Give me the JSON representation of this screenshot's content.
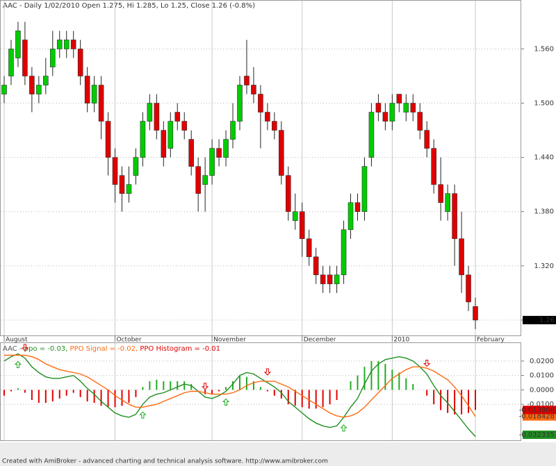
{
  "chart_data": [
    {
      "type": "candlestick",
      "title": "AAC - Daily 1/02/2010 Open 1.275, Hi 1.285, Lo 1.25, Close 1.26 (-0.8%)",
      "categories": [
        "August",
        null,
        null,
        null,
        null,
        null,
        null,
        null,
        null,
        null,
        null,
        null,
        null,
        null,
        null,
        null,
        "October",
        null,
        null,
        null,
        null,
        null,
        null,
        null,
        null,
        null,
        null,
        null,
        null,
        null,
        "November",
        null,
        null,
        null,
        null,
        null,
        null,
        null,
        null,
        null,
        null,
        null,
        null,
        "December",
        null,
        null,
        null,
        null,
        null,
        null,
        null,
        null,
        null,
        null,
        null,
        null,
        "2010",
        null,
        null,
        null,
        null,
        null,
        null,
        null,
        null,
        null,
        null,
        null,
        "February"
      ],
      "open": [
        1.51,
        1.53,
        1.55,
        1.57,
        1.53,
        1.51,
        1.52,
        1.54,
        1.56,
        1.56,
        1.57,
        1.56,
        1.53,
        1.5,
        1.52,
        1.48,
        1.44,
        1.42,
        1.4,
        1.42,
        1.44,
        1.48,
        1.5,
        1.47,
        1.45,
        1.49,
        1.48,
        1.46,
        1.43,
        1.41,
        1.42,
        1.45,
        1.44,
        1.46,
        1.48,
        1.53,
        1.52,
        1.51,
        1.49,
        1.48,
        1.47,
        1.42,
        1.37,
        1.38,
        1.35,
        1.33,
        1.31,
        1.31,
        1.3,
        1.31,
        1.36,
        1.39,
        1.38,
        1.44,
        1.5,
        1.49,
        1.48,
        1.51,
        1.49,
        1.5,
        1.49,
        1.47,
        1.45,
        1.41,
        1.38,
        1.4,
        1.35,
        1.31,
        1.275
      ],
      "high": [
        1.53,
        1.57,
        1.59,
        1.59,
        1.54,
        1.53,
        1.55,
        1.58,
        1.58,
        1.58,
        1.58,
        1.57,
        1.54,
        1.53,
        1.53,
        1.49,
        1.45,
        1.43,
        1.43,
        1.45,
        1.49,
        1.51,
        1.51,
        1.48,
        1.49,
        1.5,
        1.49,
        1.47,
        1.44,
        1.44,
        1.46,
        1.46,
        1.47,
        1.5,
        1.53,
        1.57,
        1.54,
        1.52,
        1.5,
        1.49,
        1.48,
        1.43,
        1.4,
        1.39,
        1.36,
        1.34,
        1.32,
        1.32,
        1.32,
        1.37,
        1.4,
        1.4,
        1.44,
        1.5,
        1.51,
        1.5,
        1.51,
        1.51,
        1.51,
        1.51,
        1.5,
        1.48,
        1.46,
        1.44,
        1.41,
        1.41,
        1.38,
        1.32,
        1.285
      ],
      "low": [
        1.5,
        1.52,
        1.54,
        1.52,
        1.49,
        1.5,
        1.51,
        1.53,
        1.55,
        1.55,
        1.55,
        1.52,
        1.49,
        1.49,
        1.46,
        1.42,
        1.39,
        1.38,
        1.39,
        1.41,
        1.43,
        1.47,
        1.46,
        1.43,
        1.44,
        1.47,
        1.46,
        1.42,
        1.38,
        1.38,
        1.41,
        1.43,
        1.43,
        1.45,
        1.47,
        1.51,
        1.5,
        1.45,
        1.47,
        1.46,
        1.41,
        1.37,
        1.36,
        1.33,
        1.32,
        1.3,
        1.29,
        1.29,
        1.29,
        1.3,
        1.35,
        1.37,
        1.37,
        1.43,
        1.48,
        1.47,
        1.47,
        1.49,
        1.48,
        1.48,
        1.46,
        1.44,
        1.4,
        1.37,
        1.37,
        1.32,
        1.29,
        1.27,
        1.25
      ],
      "close": [
        1.52,
        1.56,
        1.58,
        1.53,
        1.51,
        1.52,
        1.53,
        1.56,
        1.57,
        1.57,
        1.56,
        1.53,
        1.5,
        1.52,
        1.48,
        1.44,
        1.41,
        1.4,
        1.41,
        1.44,
        1.48,
        1.5,
        1.47,
        1.44,
        1.48,
        1.48,
        1.47,
        1.43,
        1.4,
        1.42,
        1.45,
        1.44,
        1.46,
        1.48,
        1.52,
        1.52,
        1.51,
        1.49,
        1.48,
        1.47,
        1.42,
        1.38,
        1.38,
        1.35,
        1.33,
        1.31,
        1.3,
        1.3,
        1.31,
        1.36,
        1.39,
        1.38,
        1.43,
        1.49,
        1.49,
        1.48,
        1.5,
        1.5,
        1.5,
        1.49,
        1.47,
        1.45,
        1.41,
        1.39,
        1.4,
        1.35,
        1.31,
        1.28,
        1.26
      ],
      "up_color": "#00cc00",
      "down_color": "#e00000",
      "ylim": [
        1.243,
        1.608
      ],
      "yticks": [
        {
          "value": 1.26,
          "label": "1.260"
        },
        {
          "value": 1.32,
          "label": "1.320"
        },
        {
          "value": 1.38,
          "label": "1.380"
        },
        {
          "value": 1.44,
          "label": "1.440"
        },
        {
          "value": 1.5,
          "label": "1.500"
        },
        {
          "value": 1.56,
          "label": "1.560"
        }
      ],
      "grid": true
    },
    {
      "type": "indicator",
      "title": "AAC -",
      "series": [
        {
          "label": "ppo = -0.03,",
          "style": "line",
          "color": "#1f8f1f",
          "values": [
            0.02,
            0.023,
            0.025,
            0.022,
            0.016,
            0.012,
            0.009,
            0.008,
            0.008,
            0.009,
            0.01,
            0.006,
            0.001,
            -0.003,
            -0.008,
            -0.012,
            -0.016,
            -0.018,
            -0.019,
            -0.017,
            -0.01,
            -0.005,
            -0.003,
            -0.002,
            0.0,
            0.002,
            0.004,
            0.003,
            -0.001,
            -0.005,
            -0.006,
            -0.004,
            -0.001,
            0.004,
            0.01,
            0.012,
            0.011,
            0.008,
            0.005,
            0.002,
            -0.002,
            -0.008,
            -0.012,
            -0.016,
            -0.02,
            -0.023,
            -0.025,
            -0.026,
            -0.025,
            -0.019,
            -0.012,
            -0.006,
            0.004,
            0.013,
            0.018,
            0.021,
            0.022,
            0.023,
            0.022,
            0.02,
            0.016,
            0.011,
            0.003,
            -0.004,
            -0.009,
            -0.015,
            -0.021,
            -0.027,
            -0.032335
          ]
        },
        {
          "label": "PPO Signal = -0.02,",
          "style": "line",
          "color": "#ff6a10",
          "values": [
            0.024,
            0.024,
            0.024,
            0.024,
            0.023,
            0.021,
            0.018,
            0.016,
            0.014,
            0.013,
            0.012,
            0.011,
            0.009,
            0.006,
            0.003,
            0.0,
            -0.004,
            -0.007,
            -0.01,
            -0.012,
            -0.012,
            -0.011,
            -0.01,
            -0.008,
            -0.006,
            -0.004,
            -0.002,
            -0.001,
            -0.001,
            -0.002,
            -0.003,
            -0.003,
            -0.003,
            -0.002,
            0.0,
            0.003,
            0.005,
            0.006,
            0.006,
            0.006,
            0.004,
            0.002,
            -0.001,
            -0.004,
            -0.007,
            -0.01,
            -0.013,
            -0.016,
            -0.018,
            -0.019,
            -0.018,
            -0.016,
            -0.012,
            -0.007,
            -0.002,
            0.003,
            0.008,
            0.011,
            0.014,
            0.016,
            0.016,
            0.015,
            0.013,
            0.01,
            0.007,
            0.002,
            -0.004,
            -0.011,
            -0.018428
          ]
        },
        {
          "label": "PPO Histogram = -0.01",
          "style": "histogram",
          "color": "#e00000",
          "up_color": "#22aa22",
          "values": [
            -0.004,
            -0.001,
            0.001,
            -0.002,
            -0.007,
            -0.009,
            -0.009,
            -0.008,
            -0.006,
            -0.004,
            -0.002,
            -0.005,
            -0.008,
            -0.009,
            -0.011,
            -0.012,
            -0.012,
            -0.011,
            -0.009,
            -0.005,
            0.002,
            0.006,
            0.007,
            0.006,
            0.006,
            0.006,
            0.006,
            0.004,
            0.0,
            -0.003,
            -0.003,
            -0.001,
            0.002,
            0.006,
            0.01,
            0.009,
            0.006,
            0.002,
            -0.001,
            -0.004,
            -0.006,
            -0.01,
            -0.011,
            -0.012,
            -0.013,
            -0.013,
            -0.012,
            -0.01,
            -0.007,
            0.0,
            0.006,
            0.01,
            0.016,
            0.02,
            0.02,
            0.018,
            0.014,
            0.012,
            0.008,
            0.004,
            0.0,
            -0.004,
            -0.01,
            -0.014,
            -0.016,
            -0.017,
            -0.017,
            -0.016,
            -0.013906
          ]
        }
      ],
      "ylim": [
        -0.034,
        0.031
      ],
      "yticks": [
        {
          "value": -0.01,
          "label": "-0.0100"
        },
        {
          "value": 0,
          "label": "0.0000"
        },
        {
          "value": 0.01,
          "label": "0.0100"
        },
        {
          "value": 0.02,
          "label": "0.0200"
        }
      ],
      "grid": true
    }
  ],
  "footer": "Created with AmiBroker - advanced charting and technical analysis software. http://www.amibroker.com"
}
